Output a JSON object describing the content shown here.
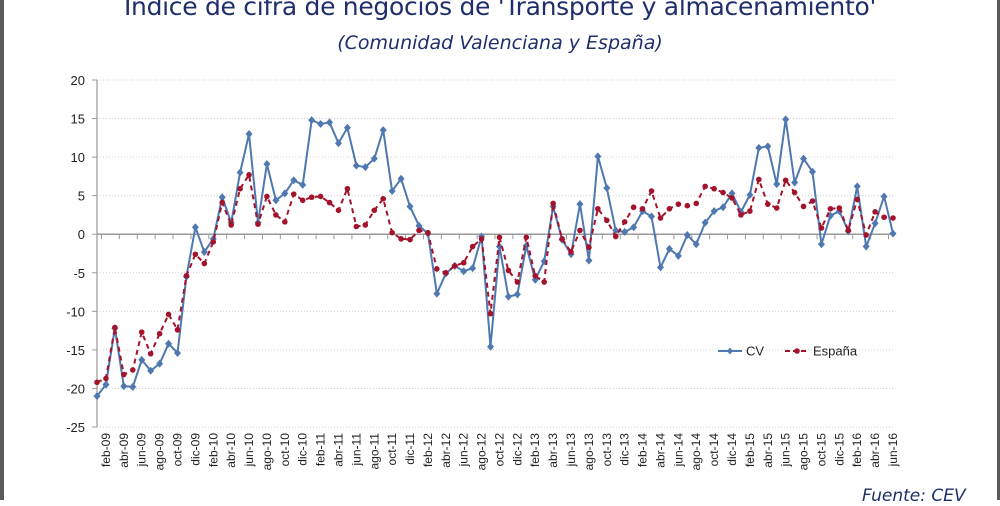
{
  "chart_data": {
    "type": "line",
    "title": "Índice de cifra de negocios de 'Transporte y almacenamiento'",
    "subtitle": "(Comunidad Valenciana y España)",
    "source": "Fuente: CEV",
    "xlabel": "",
    "ylabel": "",
    "ylim": [
      -25,
      20
    ],
    "yticks": [
      20,
      15,
      10,
      5,
      0,
      -5,
      -10,
      -15,
      -20,
      -25
    ],
    "grid": true,
    "legend_position": "middle-right",
    "x": [
      "ene-09",
      "feb-09",
      "mar-09",
      "abr-09",
      "may-09",
      "jun-09",
      "jul-09",
      "ago-09",
      "sep-09",
      "oct-09",
      "nov-09",
      "dic-09",
      "ene-10",
      "feb-10",
      "mar-10",
      "abr-10",
      "may-10",
      "jun-10",
      "jul-10",
      "ago-10",
      "sep-10",
      "oct-10",
      "nov-10",
      "dic-10",
      "ene-11",
      "feb-11",
      "mar-11",
      "abr-11",
      "may-11",
      "jun-11",
      "jul-11",
      "ago-11",
      "sep-11",
      "oct-11",
      "nov-11",
      "dic-11",
      "ene-12",
      "feb-12",
      "mar-12",
      "abr-12",
      "may-12",
      "jun-12",
      "jul-12",
      "ago-12",
      "sep-12",
      "oct-12",
      "nov-12",
      "dic-12",
      "ene-13",
      "feb-13",
      "mar-13",
      "abr-13",
      "may-13",
      "jun-13",
      "jul-13",
      "ago-13",
      "sep-13",
      "oct-13",
      "nov-13",
      "dic-13",
      "ene-14",
      "feb-14",
      "mar-14",
      "abr-14",
      "may-14",
      "jun-14",
      "jul-14",
      "ago-14",
      "sep-14",
      "oct-14",
      "nov-14",
      "dic-14",
      "ene-15",
      "feb-15",
      "mar-15",
      "abr-15",
      "may-15",
      "jun-15",
      "jul-15",
      "ago-15",
      "sep-15",
      "oct-15",
      "nov-15",
      "dic-15",
      "ene-16",
      "feb-16",
      "mar-16",
      "abr-16",
      "may-16",
      "jun-16"
    ],
    "xtick_labels": [
      "feb-09",
      "abr-09",
      "jun-09",
      "ago-09",
      "oct-09",
      "dic-09",
      "feb-10",
      "abr-10",
      "jun-10",
      "ago-10",
      "oct-10",
      "dic-10",
      "feb-11",
      "abr-11",
      "jun-11",
      "ago-11",
      "oct-11",
      "dic-11",
      "feb-12",
      "abr-12",
      "jun-12",
      "ago-12",
      "oct-12",
      "dic-12",
      "feb-13",
      "abr-13",
      "jun-13",
      "ago-13",
      "oct-13",
      "dic-13",
      "feb-14",
      "abr-14",
      "jun-14",
      "ago-14",
      "oct-14",
      "dic-14",
      "feb-15",
      "abr-15",
      "jun-15",
      "ago-15",
      "oct-15",
      "dic-15",
      "feb-16",
      "abr-16",
      "jun-16"
    ],
    "series": [
      {
        "name": "CV",
        "color": "#4f78b0",
        "style": "solid-diamond",
        "values": [
          -21,
          -19.5,
          -12.2,
          -19.7,
          -19.8,
          -16.3,
          -17.7,
          -16.8,
          -14.2,
          -15.4,
          -5.5,
          0.9,
          -2.3,
          -0.6,
          4.8,
          1.5,
          8,
          13,
          1.5,
          9.1,
          4.4,
          5.3,
          7,
          6.4,
          14.8,
          14.3,
          14.5,
          11.8,
          13.8,
          8.9,
          8.7,
          9.8,
          13.5,
          5.6,
          7.2,
          3.6,
          1.1,
          0.1,
          -7.7,
          -5.1,
          -4.1,
          -4.8,
          -4.4,
          -0.3,
          -14.6,
          -1.6,
          -8.1,
          -7.8,
          -1.5,
          -5.9,
          -3.5,
          3.6,
          -0.7,
          -2.6,
          3.9,
          -3.4,
          10.1,
          6.0,
          0.5,
          0.3,
          0.9,
          3.0,
          2.3,
          -4.3,
          -1.9,
          -2.8,
          -0.1,
          -1.3,
          1.5,
          3.0,
          3.5,
          5.3,
          2.9,
          5.1,
          11.2,
          11.4,
          6.5,
          14.9,
          6.7,
          9.8,
          8.1,
          -1.3,
          2.4,
          3.0,
          0.4,
          6.2,
          -1.6,
          1.4,
          4.9,
          0.1
        ]
      },
      {
        "name": "España",
        "color": "#a3132c",
        "style": "dashed-dot",
        "values": [
          -19.2,
          -18.7,
          -12.1,
          -18.2,
          -17.6,
          -12.7,
          -15.5,
          -12.9,
          -10.4,
          -12.4,
          -5.4,
          -2.6,
          -3.8,
          -1,
          4.1,
          1.2,
          5.9,
          7.7,
          1.3,
          4.9,
          2.5,
          1.6,
          5.2,
          4.4,
          4.8,
          4.9,
          4.1,
          3.1,
          5.9,
          1,
          1.2,
          3.1,
          4.6,
          0.2,
          -0.6,
          -0.7,
          0.5,
          0.2,
          -4.5,
          -5.0,
          -4.1,
          -3.7,
          -1.6,
          -0.6,
          -10.3,
          -0.4,
          -4.7,
          -6.2,
          -0.4,
          -5.4,
          -6.2,
          4.0,
          -0.6,
          -2.3,
          0.5,
          -1.7,
          3.3,
          1.8,
          -0.3,
          1.6,
          3.5,
          3.3,
          5.6,
          2.1,
          3.3,
          3.9,
          3.7,
          4.0,
          6.2,
          5.9,
          5.4,
          4.7,
          2.5,
          3.0,
          7.1,
          3.9,
          3.4,
          7.0,
          5.4,
          3.6,
          4.3,
          0.8,
          3.3,
          3.4,
          0.5,
          4.5,
          -0.1,
          2.9,
          2.2,
          2.1
        ]
      }
    ]
  }
}
